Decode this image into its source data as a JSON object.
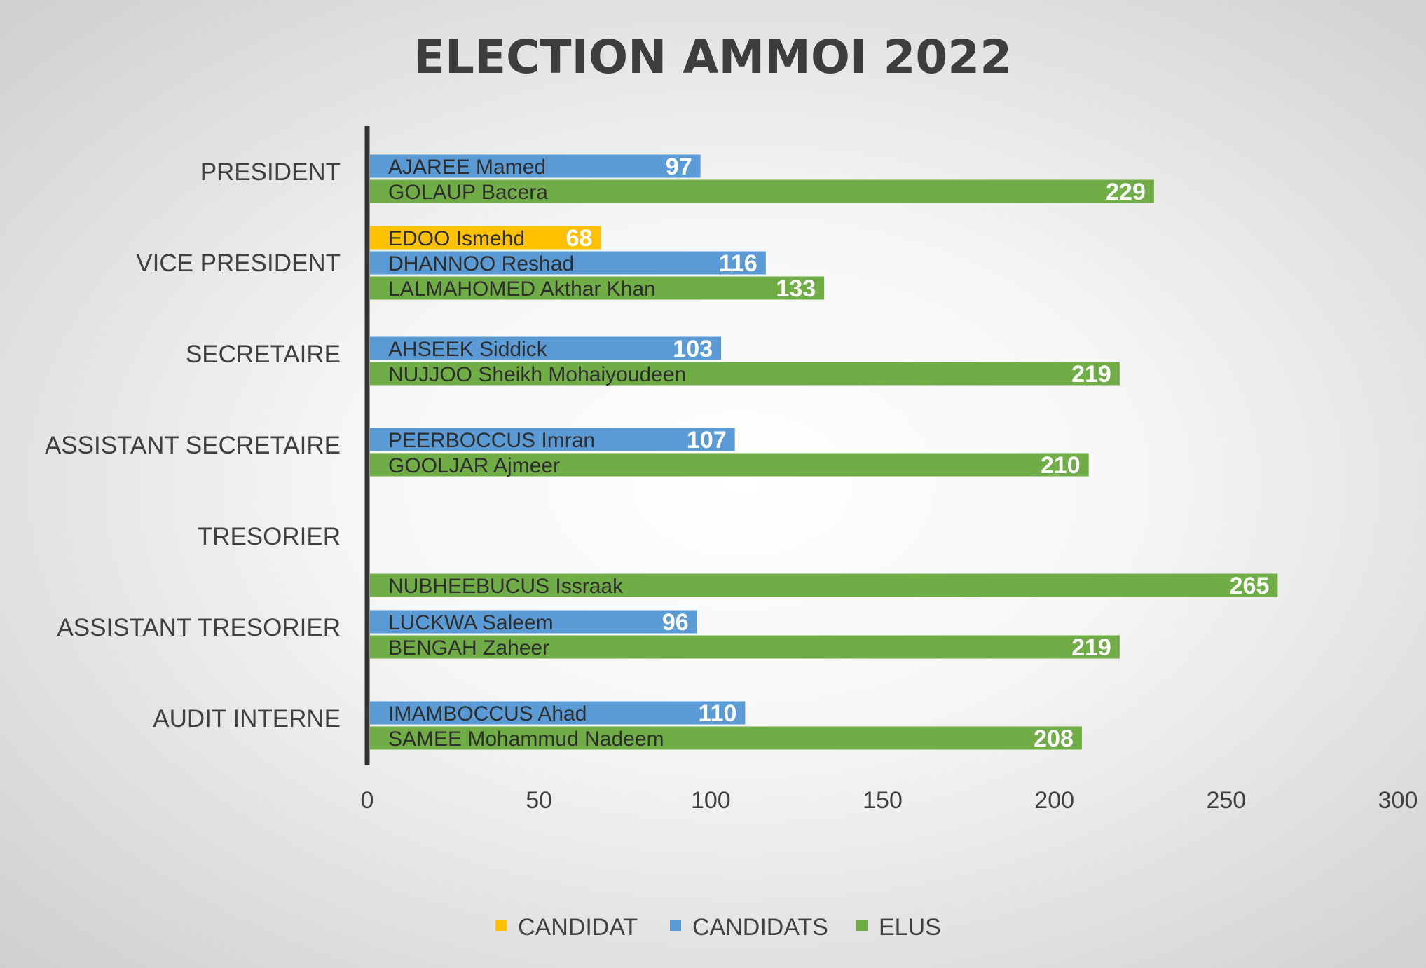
{
  "chart_data": {
    "type": "bar",
    "orientation": "horizontal",
    "title": "ELECTION AMMOI 2022",
    "xlim": [
      0,
      300
    ],
    "x_ticks": [
      0,
      50,
      100,
      150,
      200,
      250,
      300
    ],
    "grid": false,
    "legend_position": "bottom",
    "legend": [
      {
        "name": "CANDIDAT",
        "color": "#FFC000"
      },
      {
        "name": "CANDIDATS",
        "color": "#5B9BD5"
      },
      {
        "name": "ELUS",
        "color": "#70AD47"
      }
    ],
    "categories": [
      {
        "label": "PRESIDENT",
        "bars": [
          {
            "series": "CANDIDATS",
            "name": "AJAREE Mamed",
            "value": 97
          },
          {
            "series": "ELUS",
            "name": "GOLAUP Bacera",
            "value": 229
          }
        ]
      },
      {
        "label": "VICE PRESIDENT",
        "bars": [
          {
            "series": "CANDIDAT",
            "name": "EDOO Ismehd",
            "value": 68
          },
          {
            "series": "CANDIDATS",
            "name": "DHANNOO Reshad",
            "value": 116
          },
          {
            "series": "ELUS",
            "name": "LALMAHOMED Akthar Khan",
            "value": 133
          }
        ]
      },
      {
        "label": "SECRETAIRE",
        "bars": [
          {
            "series": "CANDIDATS",
            "name": "AHSEEK Siddick",
            "value": 103
          },
          {
            "series": "ELUS",
            "name": "NUJJOO Sheikh Mohaiyoudeen",
            "value": 219
          }
        ]
      },
      {
        "label": "ASSISTANT SECRETAIRE",
        "bars": [
          {
            "series": "CANDIDATS",
            "name": "PEERBOCCUS Imran",
            "value": 107
          },
          {
            "series": "ELUS",
            "name": "GOOLJAR Ajmeer",
            "value": 210
          }
        ]
      },
      {
        "label": "TRESORIER",
        "bars": [
          {
            "series": "ELUS",
            "name": "NUBHEEBUCUS Issraak",
            "value": 265
          }
        ]
      },
      {
        "label": "ASSISTANT TRESORIER",
        "bars": [
          {
            "series": "CANDIDATS",
            "name": "LUCKWA  Saleem",
            "value": 96
          },
          {
            "series": "ELUS",
            "name": "BENGAH Zaheer",
            "value": 219
          }
        ]
      },
      {
        "label": "AUDIT INTERNE",
        "bars": [
          {
            "series": "CANDIDATS",
            "name": "IMAMBOCCUS  Ahad",
            "value": 110
          },
          {
            "series": "ELUS",
            "name": "SAMEE Mohammud Nadeem",
            "value": 208
          }
        ]
      }
    ]
  }
}
